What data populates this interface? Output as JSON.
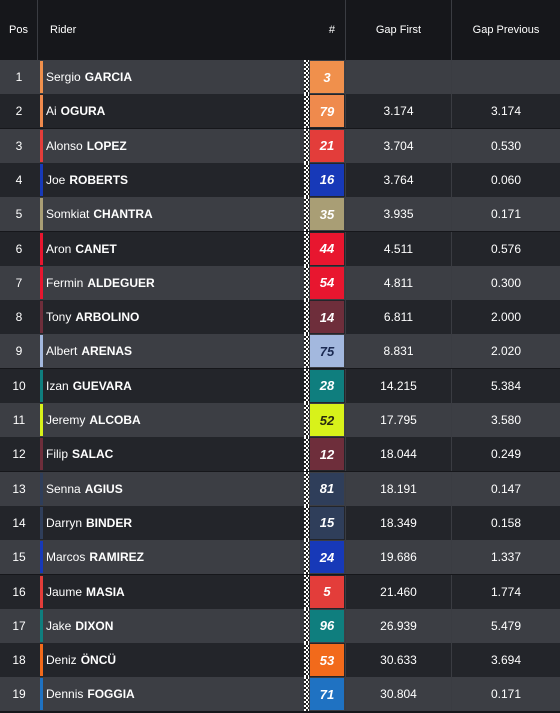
{
  "header": {
    "pos": "Pos",
    "rider": "Rider",
    "number": "#",
    "gap_first": "Gap First",
    "gap_previous": "Gap Previous"
  },
  "rows": [
    {
      "pos": "1",
      "first": "Sergio",
      "last": "GARCIA",
      "num": "3",
      "color": "#f0904c",
      "num_text_color": "#ffffff",
      "gap_first": "",
      "gap_previous": ""
    },
    {
      "pos": "2",
      "first": "Ai",
      "last": "OGURA",
      "num": "79",
      "color": "#ef8a4d",
      "num_text_color": "#ffffff",
      "gap_first": "3.174",
      "gap_previous": "3.174"
    },
    {
      "pos": "3",
      "first": "Alonso",
      "last": "LOPEZ",
      "num": "21",
      "color": "#e33d3a",
      "num_text_color": "#ffffff",
      "gap_first": "3.704",
      "gap_previous": "0.530"
    },
    {
      "pos": "4",
      "first": "Joe",
      "last": "ROBERTS",
      "num": "16",
      "color": "#1739b8",
      "num_text_color": "#ffffff",
      "gap_first": "3.764",
      "gap_previous": "0.060"
    },
    {
      "pos": "5",
      "first": "Somkiat",
      "last": "CHANTRA",
      "num": "35",
      "color": "#a99e75",
      "num_text_color": "#ffffff",
      "gap_first": "3.935",
      "gap_previous": "0.171"
    },
    {
      "pos": "6",
      "first": "Aron",
      "last": "CANET",
      "num": "44",
      "color": "#e8162f",
      "num_text_color": "#ffffff",
      "gap_first": "4.511",
      "gap_previous": "0.576"
    },
    {
      "pos": "7",
      "first": "Fermin",
      "last": "ALDEGUER",
      "num": "54",
      "color": "#e8162f",
      "num_text_color": "#ffffff",
      "gap_first": "4.811",
      "gap_previous": "0.300"
    },
    {
      "pos": "8",
      "first": "Tony",
      "last": "ARBOLINO",
      "num": "14",
      "color": "#6e2e3b",
      "num_text_color": "#ffffff",
      "gap_first": "6.811",
      "gap_previous": "2.000"
    },
    {
      "pos": "9",
      "first": "Albert",
      "last": "ARENAS",
      "num": "75",
      "color": "#a3b8de",
      "num_text_color": "#1b2a52",
      "gap_first": "8.831",
      "gap_previous": "2.020"
    },
    {
      "pos": "10",
      "first": "Izan",
      "last": "GUEVARA",
      "num": "28",
      "color": "#0f7e7e",
      "num_text_color": "#ffffff",
      "gap_first": "14.215",
      "gap_previous": "5.384"
    },
    {
      "pos": "11",
      "first": "Jeremy",
      "last": "ALCOBA",
      "num": "52",
      "color": "#d8f21a",
      "num_text_color": "#2a2a10",
      "gap_first": "17.795",
      "gap_previous": "3.580"
    },
    {
      "pos": "12",
      "first": "Filip",
      "last": "SALAC",
      "num": "12",
      "color": "#6e2e3b",
      "num_text_color": "#ffffff",
      "gap_first": "18.044",
      "gap_previous": "0.249"
    },
    {
      "pos": "13",
      "first": "Senna",
      "last": "AGIUS",
      "num": "81",
      "color": "#2f3e5a",
      "num_text_color": "#ffffff",
      "gap_first": "18.191",
      "gap_previous": "0.147"
    },
    {
      "pos": "14",
      "first": "Darryn",
      "last": "BINDER",
      "num": "15",
      "color": "#2f3e5a",
      "num_text_color": "#ffffff",
      "gap_first": "18.349",
      "gap_previous": "0.158"
    },
    {
      "pos": "15",
      "first": "Marcos",
      "last": "RAMIREZ",
      "num": "24",
      "color": "#1739b8",
      "num_text_color": "#ffffff",
      "gap_first": "19.686",
      "gap_previous": "1.337"
    },
    {
      "pos": "16",
      "first": "Jaume",
      "last": "MASIA",
      "num": "5",
      "color": "#e33d3a",
      "num_text_color": "#ffffff",
      "gap_first": "21.460",
      "gap_previous": "1.774"
    },
    {
      "pos": "17",
      "first": "Jake",
      "last": "DIXON",
      "num": "96",
      "color": "#0f7e7e",
      "num_text_color": "#ffffff",
      "gap_first": "26.939",
      "gap_previous": "5.479"
    },
    {
      "pos": "18",
      "first": "Deniz",
      "last": "ÖNCÜ",
      "num": "53",
      "color": "#f26a1b",
      "num_text_color": "#ffffff",
      "gap_first": "30.633",
      "gap_previous": "3.694"
    },
    {
      "pos": "19",
      "first": "Dennis",
      "last": "FOGGIA",
      "num": "71",
      "color": "#1f72c2",
      "num_text_color": "#ffffff",
      "gap_first": "30.804",
      "gap_previous": "0.171"
    }
  ]
}
